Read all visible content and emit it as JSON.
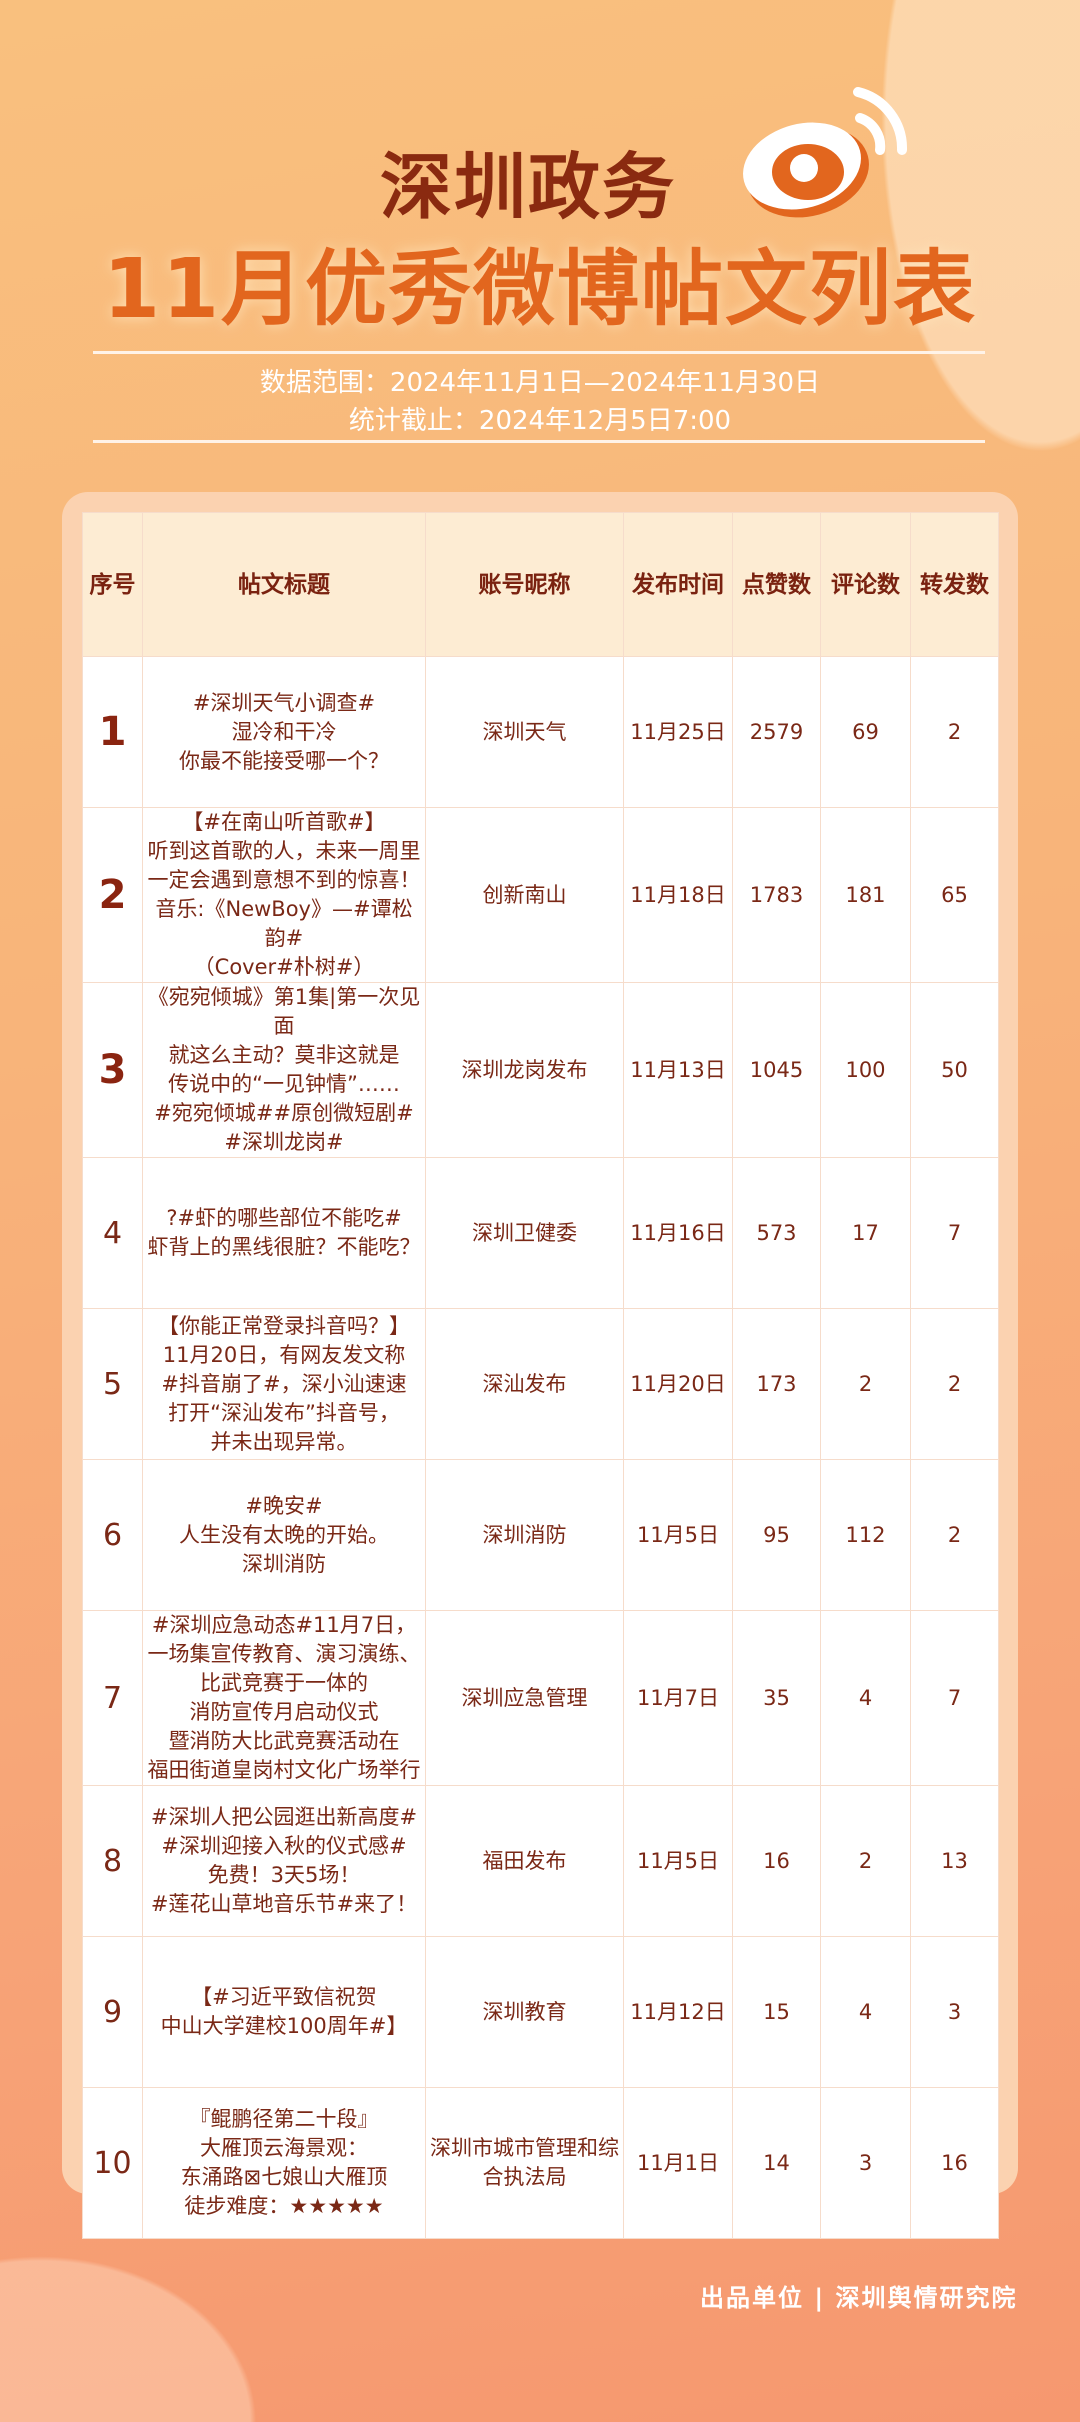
{
  "header": {
    "line1": "深圳政务",
    "line2": "11月优秀微博帖文列表",
    "logo_icon": "weibo-logo",
    "range": "数据范围：2024年11月1日—2024年11月30日",
    "cutoff": "统计截止：2024年12月5日7:00"
  },
  "colors": {
    "title_dark": "#8a2a10",
    "title_orange": "#e2661e",
    "text": "#7a2816",
    "header_bg": "#fdecd3"
  },
  "table": {
    "columns": [
      "序号",
      "帖文标题",
      "账号昵称",
      "发布时间",
      "点赞数",
      "评论数",
      "转发数"
    ],
    "rows": [
      {
        "rank": "1",
        "title": [
          "#深圳天气小调查#",
          "湿冷和干冷",
          "你最不能接受哪一个？"
        ],
        "account": "深圳天气",
        "date": "11月25日",
        "likes": "2579",
        "comments": "69",
        "shares": "2"
      },
      {
        "rank": "2",
        "title": [
          "【#在南山听首歌#】",
          "听到这首歌的人，未来一周里",
          "一定会遇到意想不到的惊喜！",
          "音乐:《NewBoy》—#谭松韵#",
          "（Cover#朴树#）"
        ],
        "account": "创新南山",
        "date": "11月18日",
        "likes": "1783",
        "comments": "181",
        "shares": "65"
      },
      {
        "rank": "3",
        "title": [
          "《宛宛倾城》第1集|第一次见面",
          "就这么主动？莫非这就是",
          "传说中的“一见钟情”……",
          "#宛宛倾城##原创微短剧#",
          "#深圳龙岗#"
        ],
        "account": "深圳龙岗发布",
        "date": "11月13日",
        "likes": "1045",
        "comments": "100",
        "shares": "50"
      },
      {
        "rank": "4",
        "title": [
          "?#虾的哪些部位不能吃#",
          "虾背上的黑线很脏？不能吃？"
        ],
        "account": "深圳卫健委",
        "date": "11月16日",
        "likes": "573",
        "comments": "17",
        "shares": "7"
      },
      {
        "rank": "5",
        "title": [
          "【你能正常登录抖音吗？】",
          "11月20日，有网友发文称",
          "#抖音崩了#，深小汕速速",
          "打开“深汕发布”抖音号，",
          "并未出现异常。"
        ],
        "account": "深汕发布",
        "date": "11月20日",
        "likes": "173",
        "comments": "2",
        "shares": "2"
      },
      {
        "rank": "6",
        "title": [
          "#晚安#",
          "人生没有太晚的开始。",
          "深圳消防"
        ],
        "account": "深圳消防",
        "date": "11月5日",
        "likes": "95",
        "comments": "112",
        "shares": "2"
      },
      {
        "rank": "7",
        "title": [
          "#深圳应急动态#11月7日，",
          "一场集宣传教育、演习演练、",
          "比武竞赛于一体的",
          "消防宣传月启动仪式",
          "暨消防大比武竞赛活动在",
          "福田街道皇岗村文化广场举行"
        ],
        "account": "深圳应急管理",
        "date": "11月7日",
        "likes": "35",
        "comments": "4",
        "shares": "7"
      },
      {
        "rank": "8",
        "title": [
          "#深圳人把公园逛出新高度#",
          "#深圳迎接入秋的仪式感#",
          "免费！3天5场！",
          "#莲花山草地音乐节#来了！"
        ],
        "account": "福田发布",
        "date": "11月5日",
        "likes": "16",
        "comments": "2",
        "shares": "13"
      },
      {
        "rank": "9",
        "title": [
          "【#习近平致信祝贺",
          "中山大学建校100周年#】"
        ],
        "account": "深圳教育",
        "date": "11月12日",
        "likes": "15",
        "comments": "4",
        "shares": "3"
      },
      {
        "rank": "10",
        "title": [
          "『鲲鹏径第二十段』",
          "大雁顶云海景观：",
          "东涌路⊠七娘山大雁顶",
          "徒步难度：★★★★★"
        ],
        "account": "深圳市城市管理和综合执法局",
        "date": "11月1日",
        "likes": "14",
        "comments": "3",
        "shares": "16"
      }
    ]
  },
  "footer": "出品单位 | 深圳舆情研究院"
}
